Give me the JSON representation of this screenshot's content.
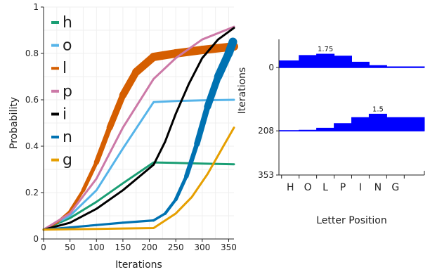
{
  "chart_data": [
    {
      "type": "line",
      "xlabel": "Iterations",
      "ylabel": "Probability",
      "xlim": [
        0,
        360
      ],
      "ylim": [
        0,
        1
      ],
      "xticks": [
        0,
        50,
        100,
        150,
        200,
        250,
        300,
        350
      ],
      "yticks": [
        0,
        0.2,
        0.4,
        0.6,
        0.8,
        1
      ],
      "xtick_labels": [
        "0",
        "50",
        "100",
        "150",
        "200",
        "250",
        "300",
        "350"
      ],
      "ytick_labels": [
        "0",
        "0.2",
        "0.4",
        "0.6",
        "0.8",
        "1"
      ],
      "grid": true,
      "legend_position": "top-left",
      "series": [
        {
          "name": "h",
          "color": "#1a9e74",
          "width": 3,
          "x": [
            0,
            50,
            100,
            150,
            208,
            250,
            300,
            360
          ],
          "y": [
            0.04,
            0.09,
            0.16,
            0.24,
            0.33,
            0.328,
            0.325,
            0.322
          ]
        },
        {
          "name": "o",
          "color": "#56b4e9",
          "width": 3,
          "x": [
            0,
            50,
            100,
            150,
            208,
            250,
            300,
            360
          ],
          "y": [
            0.04,
            0.1,
            0.21,
            0.39,
            0.59,
            0.595,
            0.598,
            0.6
          ]
        },
        {
          "name": "l",
          "color": "#d55e00",
          "x": [
            0,
            25,
            50,
            75,
            100,
            125,
            150,
            175,
            208,
            250,
            300,
            360
          ],
          "y": [
            0.04,
            0.07,
            0.12,
            0.21,
            0.33,
            0.48,
            0.62,
            0.72,
            0.785,
            0.8,
            0.815,
            0.83
          ]
        },
        {
          "name": "p",
          "color": "#cc79a7",
          "width": 3,
          "x": [
            0,
            50,
            100,
            150,
            208,
            250,
            300,
            360
          ],
          "y": [
            0.04,
            0.11,
            0.26,
            0.48,
            0.69,
            0.78,
            0.86,
            0.915
          ]
        },
        {
          "name": "i",
          "color": "#000000",
          "width": 3,
          "x": [
            0,
            50,
            100,
            150,
            208,
            230,
            250,
            275,
            300,
            330,
            360
          ],
          "y": [
            0.04,
            0.07,
            0.13,
            0.21,
            0.32,
            0.42,
            0.54,
            0.67,
            0.78,
            0.86,
            0.91
          ]
        },
        {
          "name": "n",
          "color": "#0072b2",
          "x": [
            0,
            50,
            100,
            150,
            208,
            230,
            250,
            270,
            290,
            310,
            330,
            350,
            358
          ],
          "y": [
            0.04,
            0.05,
            0.06,
            0.07,
            0.08,
            0.11,
            0.17,
            0.27,
            0.41,
            0.57,
            0.7,
            0.8,
            0.85
          ]
        },
        {
          "name": "g",
          "color": "#e69f00",
          "width": 3,
          "x": [
            0,
            50,
            100,
            150,
            208,
            250,
            280,
            310,
            340,
            360
          ],
          "y": [
            0.04,
            0.042,
            0.043,
            0.045,
            0.047,
            0.11,
            0.18,
            0.28,
            0.4,
            0.48
          ]
        }
      ]
    },
    {
      "type": "area",
      "xlabel": "Letter Position",
      "ylabel": "Iterations",
      "categories": [
        "H",
        "O",
        "L",
        "P",
        "I",
        "N",
        "G"
      ],
      "ylim": [
        353,
        0
      ],
      "yticks": [
        0,
        208,
        353
      ],
      "ytick_labels": [
        "0",
        "208",
        "353"
      ],
      "fill_color": "#0000ff",
      "rows": [
        {
          "iteration": 0,
          "values": [
            0.5,
            0.9,
            1.0,
            0.85,
            0.4,
            0.15,
            0.05
          ],
          "peak_index": 2,
          "peak_label": "1.75"
        },
        {
          "iteration": 208,
          "values": [
            0.02,
            0.05,
            0.2,
            0.55,
            1.0,
            1.25,
            1.0
          ],
          "peak_index": 5,
          "peak_label": "1.5"
        }
      ]
    }
  ]
}
